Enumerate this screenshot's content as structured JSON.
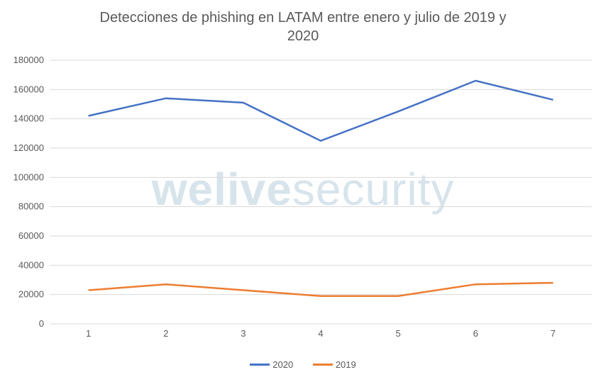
{
  "chart": {
    "type": "line",
    "title": "Detecciones de phishing en LATAM entre enero y julio de 2019 y\n2020",
    "title_fontsize": 20,
    "title_color": "#595959",
    "background_color": "#ffffff",
    "watermark_text": "welivesecurity",
    "watermark_color": "#d8e4ec",
    "grid_color": "#d9d9d9",
    "x": {
      "categories": [
        "1",
        "2",
        "3",
        "4",
        "5",
        "6",
        "7"
      ],
      "label_fontsize": 13,
      "label_color": "#595959"
    },
    "y": {
      "min": 0,
      "max": 180000,
      "tick_step": 20000,
      "label_fontsize": 13,
      "label_color": "#595959"
    },
    "series": [
      {
        "name": "2020",
        "color": "#4472c4",
        "line_width": 2.5,
        "values": [
          142000,
          154000,
          151000,
          125000,
          145000,
          166000,
          153000
        ]
      },
      {
        "name": "2019",
        "color": "#ed7d31",
        "line_width": 2.5,
        "values": [
          23000,
          27000,
          23000,
          19000,
          19000,
          27000,
          28000
        ]
      }
    ],
    "legend": {
      "position": "bottom",
      "fontsize": 13,
      "color": "#595959"
    }
  }
}
